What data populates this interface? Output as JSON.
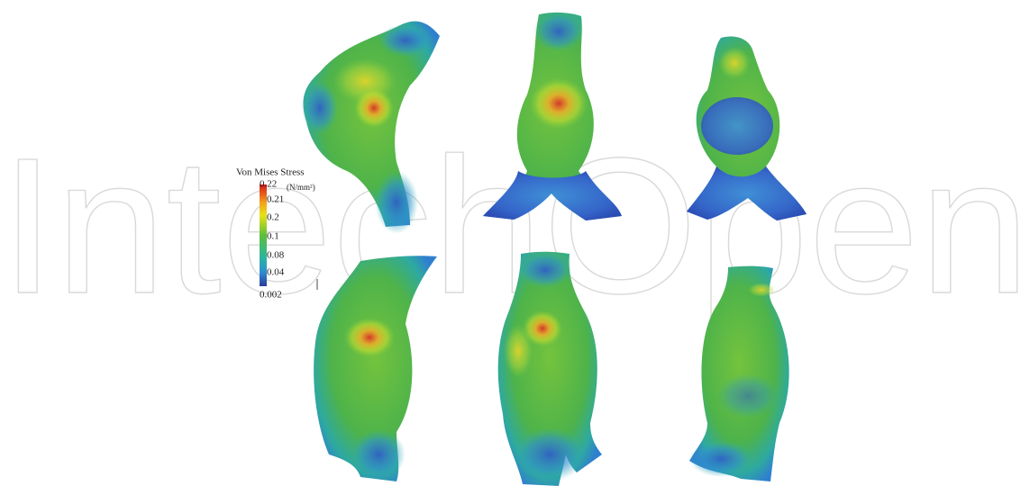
{
  "watermark": "IntechOpen",
  "legend": {
    "title": "Von Mises Stress",
    "unit": "(N/mm²)",
    "ticks": [
      "0.22",
      "0.21",
      "0.2",
      "0.1",
      "0.08",
      "0.04",
      "0.002"
    ]
  }
}
